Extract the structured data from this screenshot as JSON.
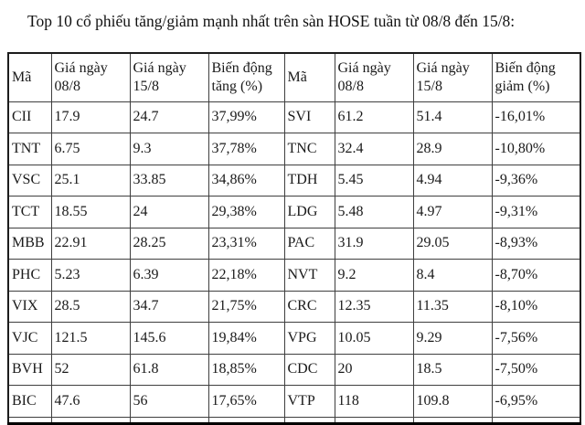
{
  "page": {
    "title": "Top 10 cổ phiếu tăng/giảm mạnh nhất trên sàn HOSE tuần từ 08/8 đến 15/8:"
  },
  "table": {
    "columns": [
      {
        "label": "Mã"
      },
      {
        "label": "Giá ngày 08/8"
      },
      {
        "label": "Giá ngày 15/8"
      },
      {
        "label": "Biến động tăng (%)"
      },
      {
        "label": "Mã"
      },
      {
        "label": "Giá ngày 08/8"
      },
      {
        "label": "Giá ngày 15/8"
      },
      {
        "label": "Biến động giảm (%)"
      }
    ],
    "rows": [
      [
        "CII",
        "17.9",
        "24.7",
        "37,99%",
        "SVI",
        "61.2",
        "51.4",
        "-16,01%"
      ],
      [
        "TNT",
        "6.75",
        "9.3",
        "37,78%",
        "TNC",
        "32.4",
        "28.9",
        "-10,80%"
      ],
      [
        "VSC",
        "25.1",
        "33.85",
        "34,86%",
        "TDH",
        "5.45",
        "4.94",
        "-9,36%"
      ],
      [
        "TCT",
        "18.55",
        "24",
        "29,38%",
        "LDG",
        "5.48",
        "4.97",
        "-9,31%"
      ],
      [
        "MBB",
        "22.91",
        "28.25",
        "23,31%",
        "PAC",
        "31.9",
        "29.05",
        "-8,93%"
      ],
      [
        "PHC",
        "5.23",
        "6.39",
        "22,18%",
        "NVT",
        "9.2",
        "8.4",
        "-8,70%"
      ],
      [
        "VIX",
        "28.5",
        "34.7",
        "21,75%",
        "CRC",
        "12.35",
        "11.35",
        "-8,10%"
      ],
      [
        "VJC",
        "121.5",
        "145.6",
        "19,84%",
        "VPG",
        "10.05",
        "9.29",
        "-7,56%"
      ],
      [
        "BVH",
        "52",
        "61.8",
        "18,85%",
        "CDC",
        "20",
        "18.5",
        "-7,50%"
      ],
      [
        "BIC",
        "47.6",
        "56",
        "17,65%",
        "VTP",
        "118",
        "109.8",
        "-6,95%"
      ]
    ]
  },
  "colors": {
    "background": "#ffffff",
    "text": "#1a1a1a",
    "border_inner": "#3f3f3f",
    "border_outer": "#1c1c1c"
  }
}
